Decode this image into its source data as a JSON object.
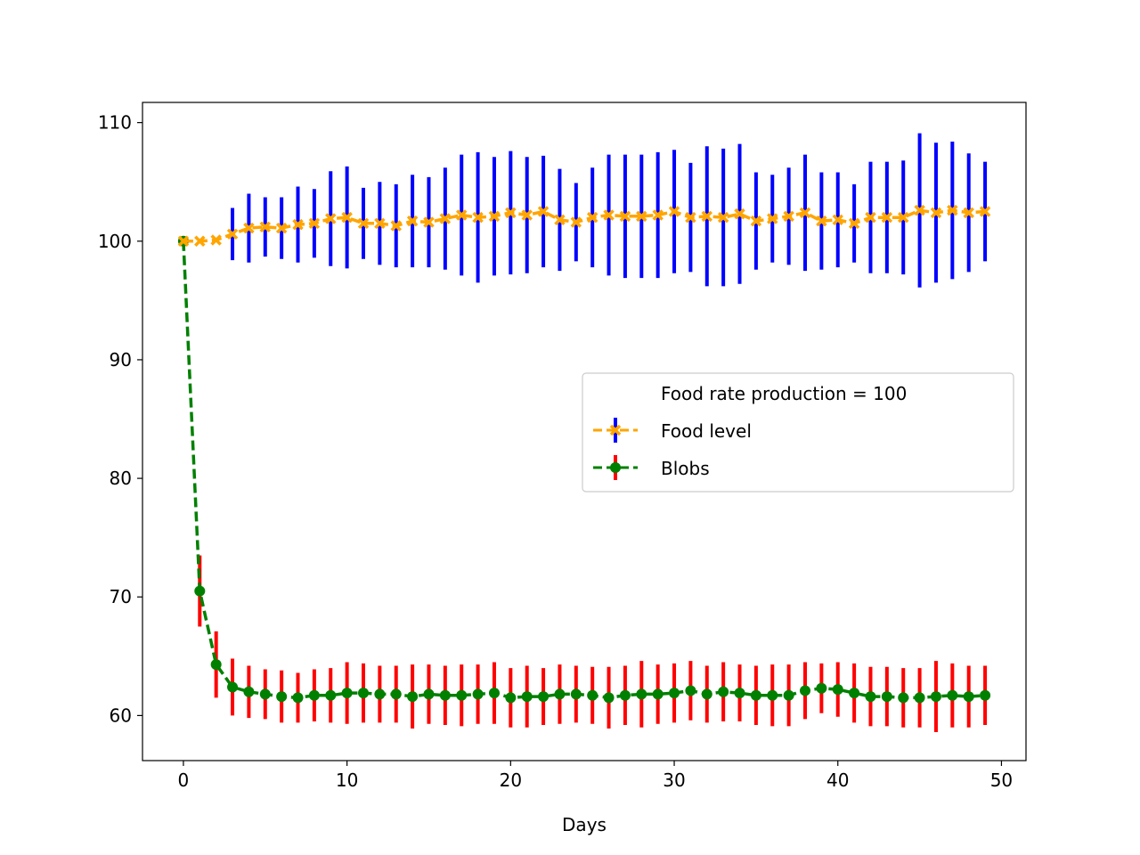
{
  "chart_data": {
    "type": "line",
    "title": "",
    "xlabel": "Days",
    "ylabel": "",
    "xlim": [
      -2.5,
      51.5
    ],
    "ylim": [
      56.2,
      111.7
    ],
    "xticks": [
      0,
      10,
      20,
      30,
      40,
      50
    ],
    "yticks": [
      60,
      70,
      80,
      90,
      100,
      110
    ],
    "grid": false,
    "legend": {
      "placement": "center-right",
      "title": "Food rate production = 100"
    },
    "x": [
      0,
      1,
      2,
      3,
      4,
      5,
      6,
      7,
      8,
      9,
      10,
      11,
      12,
      13,
      14,
      15,
      16,
      17,
      18,
      19,
      20,
      21,
      22,
      23,
      24,
      25,
      26,
      27,
      28,
      29,
      30,
      31,
      32,
      33,
      34,
      35,
      36,
      37,
      38,
      39,
      40,
      41,
      42,
      43,
      44,
      45,
      46,
      47,
      48,
      49
    ],
    "series": [
      {
        "name": "Food level",
        "color": "#ffa500",
        "marker": "x",
        "linestyle": "dashed",
        "errorbar_color": "#0000ff",
        "values": [
          100.0,
          100.0,
          100.1,
          100.6,
          101.1,
          101.2,
          101.1,
          101.4,
          101.5,
          101.9,
          102.0,
          101.5,
          101.5,
          101.3,
          101.7,
          101.6,
          101.9,
          102.2,
          102.0,
          102.1,
          102.4,
          102.2,
          102.5,
          101.8,
          101.6,
          102.0,
          102.2,
          102.1,
          102.1,
          102.2,
          102.5,
          102.0,
          102.1,
          102.0,
          102.3,
          101.7,
          101.9,
          102.1,
          102.4,
          101.7,
          101.8,
          101.5,
          102.0,
          102.0,
          102.0,
          102.6,
          102.4,
          102.6,
          102.4,
          102.5
        ],
        "errors": [
          0,
          0,
          0,
          2.2,
          2.9,
          2.5,
          2.6,
          3.2,
          2.9,
          4.0,
          4.3,
          3.0,
          3.5,
          3.5,
          3.9,
          3.8,
          4.3,
          5.1,
          5.5,
          5.0,
          5.2,
          4.9,
          4.7,
          4.3,
          3.3,
          4.2,
          5.1,
          5.2,
          5.2,
          5.3,
          5.2,
          4.6,
          5.9,
          5.8,
          5.9,
          4.1,
          3.7,
          4.1,
          4.9,
          4.1,
          4.0,
          3.3,
          4.7,
          4.7,
          4.8,
          6.5,
          5.9,
          5.8,
          5.0,
          4.2
        ]
      },
      {
        "name": "Blobs",
        "color": "#008000",
        "marker": "o",
        "linestyle": "dashed",
        "errorbar_color": "#ff0000",
        "values": [
          100.0,
          70.5,
          64.3,
          62.4,
          62.0,
          61.8,
          61.6,
          61.5,
          61.7,
          61.7,
          61.9,
          61.9,
          61.8,
          61.8,
          61.6,
          61.8,
          61.7,
          61.7,
          61.8,
          61.9,
          61.5,
          61.6,
          61.6,
          61.8,
          61.8,
          61.7,
          61.5,
          61.7,
          61.8,
          61.8,
          61.9,
          62.1,
          61.8,
          62.0,
          61.9,
          61.7,
          61.7,
          61.7,
          62.1,
          62.3,
          62.2,
          61.9,
          61.6,
          61.6,
          61.5,
          61.5,
          61.6,
          61.7,
          61.6,
          61.7
        ],
        "errors": [
          0,
          3.0,
          2.8,
          2.4,
          2.2,
          2.1,
          2.2,
          2.1,
          2.2,
          2.3,
          2.6,
          2.5,
          2.4,
          2.4,
          2.7,
          2.5,
          2.5,
          2.6,
          2.5,
          2.6,
          2.5,
          2.6,
          2.4,
          2.5,
          2.4,
          2.4,
          2.6,
          2.5,
          2.8,
          2.5,
          2.5,
          2.5,
          2.4,
          2.5,
          2.4,
          2.5,
          2.6,
          2.6,
          2.4,
          2.1,
          2.3,
          2.5,
          2.5,
          2.5,
          2.5,
          2.5,
          3.0,
          2.7,
          2.6,
          2.5
        ]
      }
    ]
  }
}
